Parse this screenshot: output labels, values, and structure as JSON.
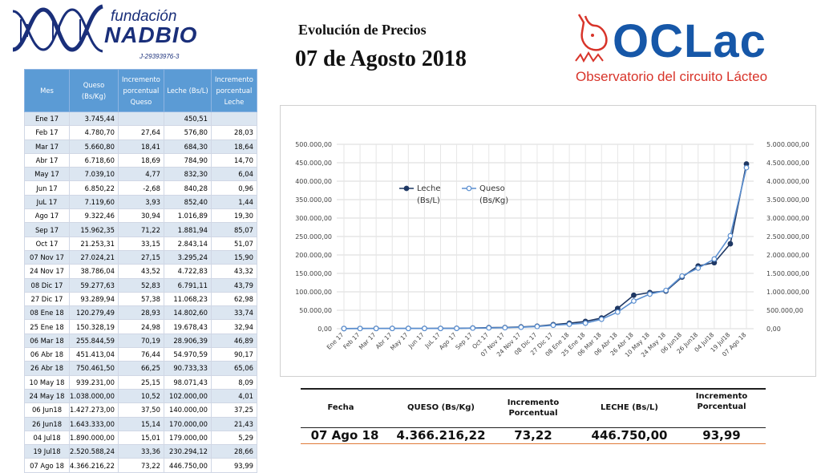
{
  "logo_nadbio": {
    "line1": "fundación",
    "line2": "NADBIO",
    "rif": "J-29393976-3"
  },
  "title": {
    "line1": "Evolución de Precios",
    "line2": "07 de Agosto 2018"
  },
  "logo_oclac": {
    "name": "OCLac",
    "subtitle": "Observatorio del circuito Lácteo"
  },
  "table": {
    "headers": [
      "Mes",
      "Queso (Bs/Kg)",
      "Incremento porcentual Queso",
      "Leche (Bs/L)",
      "Incremento porcentual Leche"
    ],
    "rows": [
      [
        "Ene 17",
        "3.745,44",
        "",
        "450,51",
        ""
      ],
      [
        "Feb 17",
        "4.780,70",
        "27,64",
        "576,80",
        "28,03"
      ],
      [
        "Mar 17",
        "5.660,80",
        "18,41",
        "684,30",
        "18,64"
      ],
      [
        "Abr 17",
        "6.718,60",
        "18,69",
        "784,90",
        "14,70"
      ],
      [
        "May 17",
        "7.039,10",
        "4,77",
        "832,30",
        "6,04"
      ],
      [
        "Jun 17",
        "6.850,22",
        "-2,68",
        "840,28",
        "0,96"
      ],
      [
        "JuL 17",
        "7.119,60",
        "3,93",
        "852,40",
        "1,44"
      ],
      [
        "Ago 17",
        "9.322,46",
        "30,94",
        "1.016,89",
        "19,30"
      ],
      [
        "Sep 17",
        "15.962,35",
        "71,22",
        "1.881,94",
        "85,07"
      ],
      [
        "Oct 17",
        "21.253,31",
        "33,15",
        "2.843,14",
        "51,07"
      ],
      [
        "07 Nov 17",
        "27.024,21",
        "27,15",
        "3.295,24",
        "15,90"
      ],
      [
        "24 Nov 17",
        "38.786,04",
        "43,52",
        "4.722,83",
        "43,32"
      ],
      [
        "08 Dic 17",
        "59.277,63",
        "52,83",
        "6.791,11",
        "43,79"
      ],
      [
        "27 Dic 17",
        "93.289,94",
        "57,38",
        "11.068,23",
        "62,98"
      ],
      [
        "08 Ene 18",
        "120.279,49",
        "28,93",
        "14.802,60",
        "33,74"
      ],
      [
        "25 Ene 18",
        "150.328,19",
        "24,98",
        "19.678,43",
        "32,94"
      ],
      [
        "06 Mar 18",
        "255.844,59",
        "70,19",
        "28.906,39",
        "46,89"
      ],
      [
        "06 Abr 18",
        "451.413,04",
        "76,44",
        "54.970,59",
        "90,17"
      ],
      [
        "26 Abr 18",
        "750.461,50",
        "66,25",
        "90.733,33",
        "65,06"
      ],
      [
        "10 May 18",
        "939.231,00",
        "25,15",
        "98.071,43",
        "8,09"
      ],
      [
        "24 May 18",
        "1.038.000,00",
        "10,52",
        "102.000,00",
        "4,01"
      ],
      [
        "06 Jun18",
        "1.427.273,00",
        "37,50",
        "140.000,00",
        "37,25"
      ],
      [
        "26 Jun18",
        "1.643.333,00",
        "15,14",
        "170.000,00",
        "21,43"
      ],
      [
        "04 Jul18",
        "1.890.000,00",
        "15,01",
        "179.000,00",
        "5,29"
      ],
      [
        "19 Jul18",
        "2.520.588,24",
        "33,36",
        "230.294,12",
        "28,66"
      ],
      [
        "07 Ago 18",
        "4.366.216,22",
        "73,22",
        "446.750,00",
        "93,99"
      ]
    ]
  },
  "chart_data": {
    "type": "line",
    "categories": [
      "Ene 17",
      "Feb 17",
      "Mar 17",
      "Abr 17",
      "May 17",
      "Jun 17",
      "JuL 17",
      "Ago 17",
      "Sep 17",
      "Oct 17",
      "07 Nov 17",
      "24 Nov 17",
      "08 Dic 17",
      "27 Dic 17",
      "08 Ene 18",
      "25 Ene 18",
      "06 Mar 18",
      "06 Abr 18",
      "26 Abr 18",
      "10 May 18",
      "24 May 18",
      "06 Jun18",
      "26 Jun18",
      "04 Jul18",
      "19 Jul18",
      "07 Ago 18"
    ],
    "x_tick_labels": [
      "Ene 17",
      "Feb 17",
      "Mar 17",
      "Abr 17",
      "May 17",
      "Jun 17",
      "JuL 17",
      "Ago 17",
      "Sep 17",
      "Oct 17",
      "07 Nov 17",
      "24 Nov 17",
      "08 Dic 17",
      "27 Dic 17",
      "08 Ene 18",
      "25 Ene 18",
      "06 Mar 18",
      "06 Abr 18",
      "26 Abr 18",
      "10 May 18",
      "24 May 18",
      "06 Jun18",
      "26 Jun18",
      "04 Jul18",
      "19 Jul18",
      "07 Ago 18"
    ],
    "series": [
      {
        "name": "Leche (Bs/L)",
        "axis": "left",
        "color": "#1f3864",
        "marker": "filled",
        "values": [
          450.51,
          576.8,
          684.3,
          784.9,
          832.3,
          840.28,
          852.4,
          1016.89,
          1881.94,
          2843.14,
          3295.24,
          4722.83,
          6791.11,
          11068.23,
          14802.6,
          19678.43,
          28906.39,
          54970.59,
          90733.33,
          98071.43,
          102000,
          140000,
          170000,
          179000,
          230294.12,
          446750
        ]
      },
      {
        "name": "Queso (Bs/Kg)",
        "axis": "right",
        "color": "#5b8fd0",
        "marker": "hollow",
        "values": [
          3745.44,
          4780.7,
          5660.8,
          6718.6,
          7039.1,
          6850.22,
          7119.6,
          9322.46,
          15962.35,
          21253.31,
          27024.21,
          38786.04,
          59277.63,
          93289.94,
          120279.49,
          150328.19,
          255844.59,
          451413.04,
          750461.5,
          939231,
          1038000,
          1427273,
          1643333,
          1890000,
          2520588.24,
          4366216.22
        ]
      }
    ],
    "ylim_left": [
      0,
      500000
    ],
    "ylim_right": [
      0,
      5000000
    ],
    "y_ticks_left": [
      "0,00",
      "50.000,00",
      "100.000,00",
      "150.000,00",
      "200.000,00",
      "250.000,00",
      "300.000,00",
      "350.000,00",
      "400.000,00",
      "450.000,00",
      "500.000,00"
    ],
    "y_ticks_right": [
      "0,00",
      "500.000,00",
      "1.000.000,00",
      "1.500.000,00",
      "2.000.000,00",
      "2.500.000,00",
      "3.000.000,00",
      "3.500.000,00",
      "4.000.000,00",
      "4.500.000,00",
      "5.000.000,00"
    ],
    "legend": [
      {
        "line1": "Leche",
        "line2": "(Bs/L)"
      },
      {
        "line1": "Queso",
        "line2": "(Bs/Kg)"
      }
    ],
    "legend_position": "top-left",
    "grid": true
  },
  "summary": {
    "headers": [
      "Fecha",
      "QUESO (Bs/Kg)",
      "Incremento Porcentual",
      "LECHE (Bs/L)",
      "Incremento Porcentual"
    ],
    "values": [
      "07 Ago  18",
      "4.366.216,22",
      "73,22",
      "446.750,00",
      "93,99"
    ]
  }
}
